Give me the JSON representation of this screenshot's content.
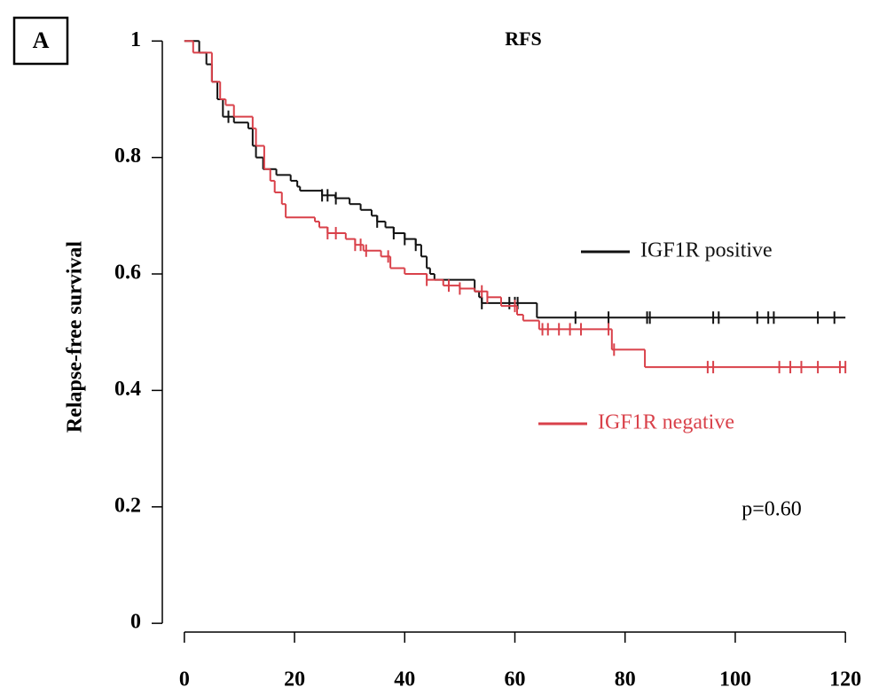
{
  "panel_label": "A",
  "chart_data": {
    "type": "km",
    "title": "RFS",
    "y_label": "Relapse-free survival",
    "xlim": [
      -4,
      124
    ],
    "ylim": [
      -0.015,
      1.04
    ],
    "xticks": [
      0,
      20,
      40,
      60,
      80,
      100,
      120
    ],
    "yticks": [
      0,
      0.2,
      0.4,
      0.6,
      0.8,
      1
    ],
    "annotation": "p=0.60",
    "series": [
      {
        "name": "IGF1R positive",
        "color": "#111111",
        "x": [
          0,
          2.7,
          4,
          5,
          6,
          7,
          9,
          11.6,
          12.4,
          13,
          14.3,
          16.7,
          19.3,
          20.5,
          21,
          25,
          27.4,
          30,
          32,
          34,
          35,
          36.5,
          38,
          40,
          42,
          43,
          44,
          44.6,
          45.4,
          52.7,
          53.5,
          54,
          64,
          120
        ],
        "values": [
          1,
          0.98,
          0.96,
          0.93,
          0.9,
          0.87,
          0.86,
          0.85,
          0.82,
          0.8,
          0.78,
          0.77,
          0.76,
          0.75,
          0.743,
          0.735,
          0.73,
          0.72,
          0.71,
          0.7,
          0.69,
          0.68,
          0.67,
          0.66,
          0.65,
          0.63,
          0.61,
          0.6,
          0.59,
          0.57,
          0.56,
          0.55,
          0.525,
          0.525
        ],
        "censored": [
          8,
          25,
          26,
          27.5,
          35,
          38,
          40,
          42,
          54,
          59,
          60,
          60.5,
          71,
          77,
          84,
          84.5,
          96,
          97,
          104,
          106,
          107,
          115,
          118
        ]
      },
      {
        "name": "IGF1R negative",
        "color": "#d9414a",
        "x": [
          0,
          1.6,
          5,
          6.5,
          7.5,
          9,
          12.4,
          13,
          14.5,
          15.6,
          16.4,
          17.7,
          18.4,
          23.7,
          24.5,
          26,
          29.3,
          31,
          32.5,
          35.7,
          37.4,
          40,
          44,
          47,
          50,
          52.7,
          55,
          57.5,
          60.4,
          61.5,
          64.4,
          77.6,
          83.6,
          120
        ],
        "values": [
          1,
          0.98,
          0.93,
          0.9,
          0.89,
          0.87,
          0.85,
          0.82,
          0.78,
          0.76,
          0.74,
          0.72,
          0.697,
          0.69,
          0.68,
          0.67,
          0.66,
          0.65,
          0.64,
          0.63,
          0.61,
          0.6,
          0.59,
          0.58,
          0.575,
          0.57,
          0.56,
          0.545,
          0.53,
          0.52,
          0.505,
          0.47,
          0.44,
          0.44
        ],
        "censored": [
          26,
          27.5,
          31,
          32,
          33,
          37,
          44,
          48,
          50,
          54,
          55,
          60,
          65,
          66,
          68,
          70,
          72,
          77,
          78,
          95,
          96,
          108,
          110,
          112,
          115,
          119,
          120
        ]
      }
    ]
  }
}
